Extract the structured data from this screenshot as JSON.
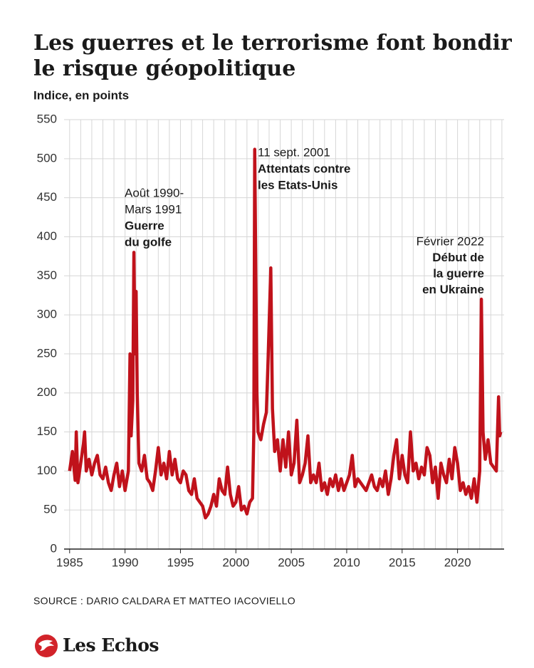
{
  "chart_data": {
    "type": "line",
    "title": [
      "Les guerres et le terrorisme font bondir",
      "le risque géopolitique"
    ],
    "subtitle": "Indice, en points",
    "source": "SOURCE : DARIO CALDARA ET MATTEO IACOVIELLO",
    "brand": "Les Echos",
    "color": "#c0121b",
    "grid": true,
    "xlim": [
      1984.5,
      2024.2
    ],
    "ylim": [
      0,
      550
    ],
    "yticks": [
      0,
      50,
      100,
      150,
      200,
      250,
      300,
      350,
      400,
      450,
      500,
      550
    ],
    "xticks": [
      1985,
      1990,
      1995,
      2000,
      2005,
      2010,
      2015,
      2020
    ],
    "xgrid": [
      1985,
      1986,
      1987,
      1988,
      1989,
      1990,
      1991,
      1992,
      1993,
      1994,
      1995,
      1996,
      1997,
      1998,
      1999,
      2000,
      2001,
      2002,
      2003,
      2004,
      2005,
      2006,
      2007,
      2008,
      2009,
      2010,
      2011,
      2012,
      2013,
      2014,
      2015,
      2016,
      2017,
      2018,
      2019,
      2020,
      2021,
      2022,
      2023,
      2024
    ],
    "annotations": [
      {
        "lines": [
          {
            "text": "Août 1990-",
            "bold": false
          },
          {
            "text": "Mars 1991",
            "bold": false
          },
          {
            "text": "Guerre",
            "bold": true
          },
          {
            "text": "du golfe",
            "bold": true
          }
        ]
      },
      {
        "lines": [
          {
            "text": "11 sept. 2001",
            "bold": false
          },
          {
            "text": "Attentats contre",
            "bold": true
          },
          {
            "text": "les Etats-Unis",
            "bold": true
          }
        ]
      },
      {
        "lines": [
          {
            "text": "Février 2022",
            "bold": false
          },
          {
            "text": "Début de",
            "bold": true
          },
          {
            "text": "la guerre",
            "bold": true
          },
          {
            "text": "en Ukraine",
            "bold": true
          }
        ]
      }
    ],
    "series": [
      {
        "name": "Indice",
        "x": [
          1985.0,
          1985.25,
          1985.5,
          1985.6,
          1985.75,
          1986.0,
          1986.25,
          1986.35,
          1986.5,
          1986.75,
          1987.0,
          1987.25,
          1987.5,
          1987.75,
          1988.0,
          1988.25,
          1988.5,
          1988.75,
          1989.0,
          1989.25,
          1989.5,
          1989.75,
          1990.0,
          1990.3,
          1990.45,
          1990.55,
          1990.7,
          1990.8,
          1990.9,
          1991.0,
          1991.1,
          1991.25,
          1991.5,
          1991.75,
          1992.0,
          1992.25,
          1992.5,
          1992.75,
          1993.0,
          1993.25,
          1993.5,
          1993.75,
          1994.0,
          1994.25,
          1994.5,
          1994.75,
          1995.0,
          1995.25,
          1995.5,
          1995.75,
          1996.0,
          1996.25,
          1996.5,
          1996.75,
          1997.0,
          1997.25,
          1997.5,
          1997.75,
          1998.0,
          1998.25,
          1998.5,
          1998.75,
          1999.0,
          1999.25,
          1999.5,
          1999.75,
          2000.0,
          2000.25,
          2000.5,
          2000.75,
          2001.0,
          2001.25,
          2001.5,
          2001.62,
          2001.7,
          2001.8,
          2001.9,
          2002.0,
          2002.25,
          2002.5,
          2002.75,
          2002.9,
          2003.15,
          2003.3,
          2003.5,
          2003.75,
          2004.0,
          2004.25,
          2004.5,
          2004.75,
          2005.0,
          2005.25,
          2005.5,
          2005.75,
          2006.0,
          2006.25,
          2006.5,
          2006.75,
          2007.0,
          2007.25,
          2007.5,
          2007.75,
          2008.0,
          2008.25,
          2008.5,
          2008.75,
          2009.0,
          2009.25,
          2009.5,
          2009.75,
          2010.0,
          2010.25,
          2010.5,
          2010.75,
          2011.0,
          2011.25,
          2011.5,
          2011.75,
          2012.0,
          2012.25,
          2012.5,
          2012.75,
          2013.0,
          2013.25,
          2013.5,
          2013.75,
          2014.0,
          2014.25,
          2014.5,
          2014.75,
          2015.0,
          2015.25,
          2015.5,
          2015.75,
          2016.0,
          2016.25,
          2016.5,
          2016.75,
          2017.0,
          2017.25,
          2017.5,
          2017.75,
          2018.0,
          2018.25,
          2018.5,
          2018.75,
          2019.0,
          2019.25,
          2019.5,
          2019.75,
          2020.0,
          2020.25,
          2020.5,
          2020.75,
          2021.0,
          2021.25,
          2021.5,
          2021.75,
          2022.0,
          2022.15,
          2022.3,
          2022.5,
          2022.75,
          2023.0,
          2023.25,
          2023.5,
          2023.7,
          2023.8,
          2023.9
        ],
        "values": [
          100,
          125,
          88,
          150,
          85,
          110,
          135,
          150,
          100,
          115,
          95,
          110,
          120,
          95,
          90,
          105,
          85,
          75,
          95,
          110,
          80,
          100,
          75,
          100,
          250,
          145,
          190,
          380,
          250,
          330,
          200,
          110,
          100,
          120,
          90,
          85,
          75,
          100,
          130,
          95,
          110,
          90,
          125,
          95,
          115,
          90,
          85,
          100,
          95,
          75,
          70,
          90,
          65,
          60,
          55,
          40,
          45,
          55,
          70,
          55,
          90,
          75,
          70,
          105,
          70,
          55,
          60,
          80,
          50,
          55,
          45,
          60,
          65,
          150,
          512,
          350,
          200,
          150,
          140,
          160,
          175,
          240,
          360,
          180,
          125,
          140,
          100,
          140,
          105,
          150,
          95,
          110,
          165,
          85,
          95,
          110,
          145,
          85,
          95,
          85,
          110,
          75,
          85,
          70,
          90,
          80,
          95,
          75,
          90,
          75,
          85,
          95,
          120,
          80,
          90,
          85,
          80,
          75,
          85,
          95,
          80,
          75,
          90,
          80,
          100,
          70,
          90,
          120,
          140,
          90,
          120,
          95,
          85,
          150,
          100,
          110,
          90,
          105,
          95,
          130,
          120,
          85,
          105,
          65,
          110,
          95,
          85,
          115,
          90,
          130,
          110,
          75,
          85,
          70,
          80,
          65,
          90,
          60,
          100,
          320,
          150,
          115,
          140,
          110,
          105,
          100,
          195,
          145,
          150
        ]
      }
    ]
  }
}
